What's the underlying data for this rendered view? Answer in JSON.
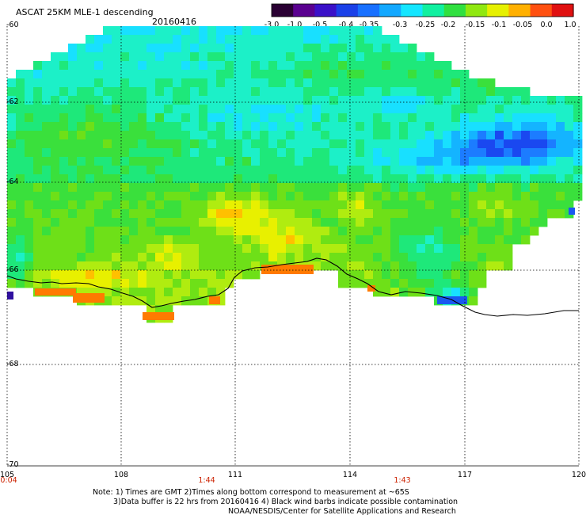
{
  "header": {
    "title": "ASCAT 25KM MLE-1 descending",
    "date": "20160416"
  },
  "colorbar": {
    "labels": [
      "-3.0",
      "-1.0",
      "-0.5",
      "-0.4",
      "-0.35",
      "-0.3",
      "-0.25",
      "-0.2",
      "-0.15",
      "-0.1",
      "-0.05",
      "0.0",
      "1.0"
    ],
    "colors": [
      "#2a0033",
      "#5a0090",
      "#3a10c8",
      "#1a40e8",
      "#1870ff",
      "#12a8ff",
      "#14e6ff",
      "#10f0a0",
      "#30e040",
      "#90e810",
      "#e6f000",
      "#ffb000",
      "#ff5010",
      "#e01010"
    ]
  },
  "map": {
    "lat_labels": [
      "-60",
      "-62",
      "-64",
      "-66",
      "-68",
      "-70"
    ],
    "lon_labels": [
      "105",
      "108",
      "111",
      "114",
      "117",
      "120"
    ],
    "time_labels": [
      "0:04",
      "1:44",
      "1:43"
    ],
    "grid": true
  },
  "footer": {
    "line1": "Note: 1) Times are GMT 2)Times along bottom correspond to measurement at ~65S",
    "line2": "3)Data buffer is 22 hrs from 20160416 4) Black wind barbs indicate possible contamination",
    "line3": "NOAA/NESDIS/Center for Satellite Applications and Research"
  }
}
